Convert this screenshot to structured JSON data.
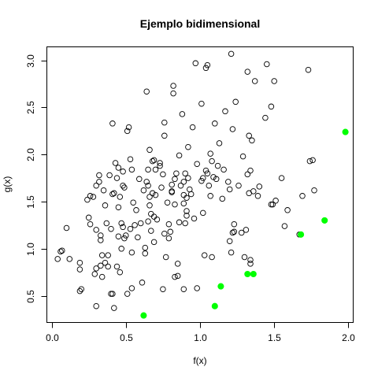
{
  "chart_data": {
    "type": "scatter",
    "title": "Ejemplo bidimensional",
    "xlabel": "f(x)",
    "ylabel": "g(x)",
    "xlim": [
      -0.03,
      2.03
    ],
    "ylim": [
      0.22,
      3.14
    ],
    "xticks": [
      0.0,
      0.5,
      1.0,
      1.5,
      2.0
    ],
    "xtick_labels": [
      "0.0",
      "0.5",
      "1.0",
      "1.5",
      "2.0"
    ],
    "yticks": [
      0.5,
      1.0,
      1.5,
      2.0,
      2.5,
      3.0
    ],
    "ytick_labels": [
      "0.5",
      "1.0",
      "1.5",
      "2.0",
      "2.5",
      "3.0"
    ],
    "grid": false,
    "series": [
      {
        "marker": "open-circle",
        "color": "#000000",
        "points": [
          [
            0.04,
            0.89
          ],
          [
            0.06,
            0.97
          ],
          [
            0.07,
            0.98
          ],
          [
            0.1,
            1.22
          ],
          [
            0.12,
            0.89
          ],
          [
            0.19,
            0.55
          ],
          [
            0.19,
            0.78
          ],
          [
            0.19,
            0.85
          ],
          [
            0.2,
            0.57
          ],
          [
            0.24,
            1.52
          ],
          [
            0.25,
            1.33
          ],
          [
            0.26,
            1.26
          ],
          [
            0.26,
            1.56
          ],
          [
            0.28,
            1.55
          ],
          [
            0.29,
            0.73
          ],
          [
            0.3,
            0.79
          ],
          [
            0.3,
            1.2
          ],
          [
            0.3,
            1.67
          ],
          [
            0.3,
            0.39
          ],
          [
            0.32,
            1.78
          ],
          [
            0.32,
            1.71
          ],
          [
            0.33,
            1.09
          ],
          [
            0.33,
            1.14
          ],
          [
            0.33,
            0.82
          ],
          [
            0.34,
            0.7
          ],
          [
            0.34,
            0.93
          ],
          [
            0.35,
            1.62
          ],
          [
            0.36,
            1.46
          ],
          [
            0.36,
            0.85
          ],
          [
            0.37,
            1.27
          ],
          [
            0.38,
            0.93
          ],
          [
            0.38,
            0.81
          ],
          [
            0.39,
            1.78
          ],
          [
            0.4,
            1.21
          ],
          [
            0.4,
            0.52
          ],
          [
            0.41,
            2.33
          ],
          [
            0.41,
            0.52
          ],
          [
            0.41,
            1.58
          ],
          [
            0.42,
            1.59
          ],
          [
            0.42,
            0.37
          ],
          [
            0.43,
            1.91
          ],
          [
            0.44,
            0.81
          ],
          [
            0.44,
            1.75
          ],
          [
            0.45,
            1.44
          ],
          [
            0.45,
            1.86
          ],
          [
            0.45,
            1.13
          ],
          [
            0.46,
            1.55
          ],
          [
            0.46,
            0.75
          ],
          [
            0.47,
            1.27
          ],
          [
            0.47,
            1.0
          ],
          [
            0.48,
            1.67
          ],
          [
            0.48,
            1.82
          ],
          [
            0.48,
            1.23
          ],
          [
            0.49,
            1.65
          ],
          [
            0.49,
            1.11
          ],
          [
            0.5,
            1.14
          ],
          [
            0.51,
            2.25
          ],
          [
            0.51,
            0.52
          ],
          [
            0.52,
            2.29
          ],
          [
            0.53,
            1.95
          ],
          [
            0.53,
            1.21
          ],
          [
            0.54,
            1.84
          ],
          [
            0.54,
            0.96
          ],
          [
            0.54,
            0.58
          ],
          [
            0.55,
            1.49
          ],
          [
            0.56,
            1.25
          ],
          [
            0.57,
            1.41
          ],
          [
            0.58,
            1.12
          ],
          [
            0.59,
            1.74
          ],
          [
            0.6,
            1.27
          ],
          [
            0.61,
            0.64
          ],
          [
            0.62,
            1.62
          ],
          [
            0.63,
            1.01
          ],
          [
            0.63,
            0.95
          ],
          [
            0.64,
            2.67
          ],
          [
            0.64,
            1.71
          ],
          [
            0.65,
            1.84
          ],
          [
            0.65,
            1.67
          ],
          [
            0.65,
            1.29
          ],
          [
            0.66,
            2.05
          ],
          [
            0.66,
            1.55
          ],
          [
            0.66,
            1.46
          ],
          [
            0.67,
            1.37
          ],
          [
            0.67,
            1.19
          ],
          [
            0.68,
            1.93
          ],
          [
            0.68,
            1.59
          ],
          [
            0.69,
            1.34
          ],
          [
            0.69,
            1.07
          ],
          [
            0.69,
            1.94
          ],
          [
            0.7,
            1.84
          ],
          [
            0.7,
            1.57
          ],
          [
            0.71,
            1.31
          ],
          [
            0.73,
            1.88
          ],
          [
            0.73,
            1.91
          ],
          [
            0.74,
            1.65
          ],
          [
            0.75,
            1.79
          ],
          [
            0.75,
            0.57
          ],
          [
            0.76,
            2.34
          ],
          [
            0.76,
            2.2
          ],
          [
            0.76,
            1.16
          ],
          [
            0.77,
            0.91
          ],
          [
            0.78,
            1.49
          ],
          [
            0.79,
            1.26
          ],
          [
            0.79,
            1.11
          ],
          [
            0.8,
            1.18
          ],
          [
            0.81,
            1.61
          ],
          [
            0.81,
            1.68
          ],
          [
            0.81,
            1.6
          ],
          [
            0.82,
            2.73
          ],
          [
            0.82,
            2.65
          ],
          [
            0.83,
            1.47
          ],
          [
            0.83,
            1.74
          ],
          [
            0.83,
            0.7
          ],
          [
            0.84,
            1.8
          ],
          [
            0.85,
            0.84
          ],
          [
            0.85,
            0.71
          ],
          [
            0.86,
            1.99
          ],
          [
            0.86,
            1.28
          ],
          [
            0.87,
            1.67
          ],
          [
            0.88,
            2.43
          ],
          [
            0.89,
            1.71
          ],
          [
            0.89,
            1.48
          ],
          [
            0.89,
            1.57
          ],
          [
            0.89,
            0.57
          ],
          [
            0.9,
            1.8
          ],
          [
            0.9,
            1.27
          ],
          [
            0.91,
            1.54
          ],
          [
            0.91,
            1.35
          ],
          [
            0.91,
            1.4
          ],
          [
            0.92,
            2.08
          ],
          [
            0.92,
            1.75
          ],
          [
            0.93,
            1.63
          ],
          [
            0.94,
            1.58
          ],
          [
            0.95,
            2.29
          ],
          [
            0.96,
            1.32
          ],
          [
            0.97,
            2.97
          ],
          [
            0.98,
            1.9
          ],
          [
            0.98,
            0.58
          ],
          [
            1.01,
            2.54
          ],
          [
            1.01,
            1.72
          ],
          [
            1.02,
            1.75
          ],
          [
            1.02,
            1.38
          ],
          [
            1.03,
            0.93
          ],
          [
            1.04,
            2.92
          ],
          [
            1.04,
            1.83
          ],
          [
            1.05,
            2.95
          ],
          [
            1.05,
            1.8
          ],
          [
            1.06,
            1.67
          ],
          [
            1.07,
            2.01
          ],
          [
            1.07,
            1.56
          ],
          [
            1.08,
            1.93
          ],
          [
            1.08,
            0.91
          ],
          [
            1.09,
            1.76
          ],
          [
            1.1,
            2.33
          ],
          [
            1.11,
            1.74
          ],
          [
            1.12,
            1.88
          ],
          [
            1.13,
            2.12
          ],
          [
            1.15,
            1.53
          ],
          [
            1.16,
            1.84
          ],
          [
            1.17,
            2.46
          ],
          [
            1.19,
            1.71
          ],
          [
            1.2,
            1.08
          ],
          [
            1.2,
            1.63
          ],
          [
            1.21,
            0.96
          ],
          [
            1.21,
            3.07
          ],
          [
            1.22,
            2.27
          ],
          [
            1.22,
            1.17
          ],
          [
            1.23,
            1.26
          ],
          [
            1.23,
            1.18
          ],
          [
            1.24,
            2.56
          ],
          [
            1.26,
            1.67
          ],
          [
            1.28,
            1.17
          ],
          [
            1.29,
            1.98
          ],
          [
            1.3,
            0.91
          ],
          [
            1.31,
            1.2
          ],
          [
            1.32,
            2.88
          ],
          [
            1.32,
            1.79
          ],
          [
            1.33,
            2.2
          ],
          [
            1.33,
            1.59
          ],
          [
            1.34,
            1.83
          ],
          [
            1.34,
            0.84
          ],
          [
            1.34,
            0.88
          ],
          [
            1.35,
            2.15
          ],
          [
            1.36,
            1.61
          ],
          [
            1.37,
            2.78
          ],
          [
            1.39,
            1.56
          ],
          [
            1.4,
            1.66
          ],
          [
            1.44,
            2.39
          ],
          [
            1.45,
            2.96
          ],
          [
            1.48,
            2.51
          ],
          [
            1.48,
            1.47
          ],
          [
            1.49,
            1.47
          ],
          [
            1.5,
            2.78
          ],
          [
            1.51,
            1.51
          ],
          [
            1.55,
            1.75
          ],
          [
            1.57,
            1.24
          ],
          [
            1.59,
            1.41
          ],
          [
            1.67,
            1.15
          ],
          [
            1.69,
            1.56
          ],
          [
            1.73,
            2.9
          ],
          [
            1.74,
            1.93
          ],
          [
            1.76,
            1.94
          ],
          [
            1.77,
            1.62
          ]
        ]
      },
      {
        "marker": "filled-circle",
        "color": "#00ff00",
        "points": [
          [
            0.62,
            0.29
          ],
          [
            1.1,
            0.39
          ],
          [
            1.14,
            0.6
          ],
          [
            1.32,
            0.73
          ],
          [
            1.36,
            0.73
          ],
          [
            1.68,
            1.15
          ],
          [
            1.84,
            1.3
          ],
          [
            1.98,
            2.24
          ]
        ]
      }
    ]
  }
}
